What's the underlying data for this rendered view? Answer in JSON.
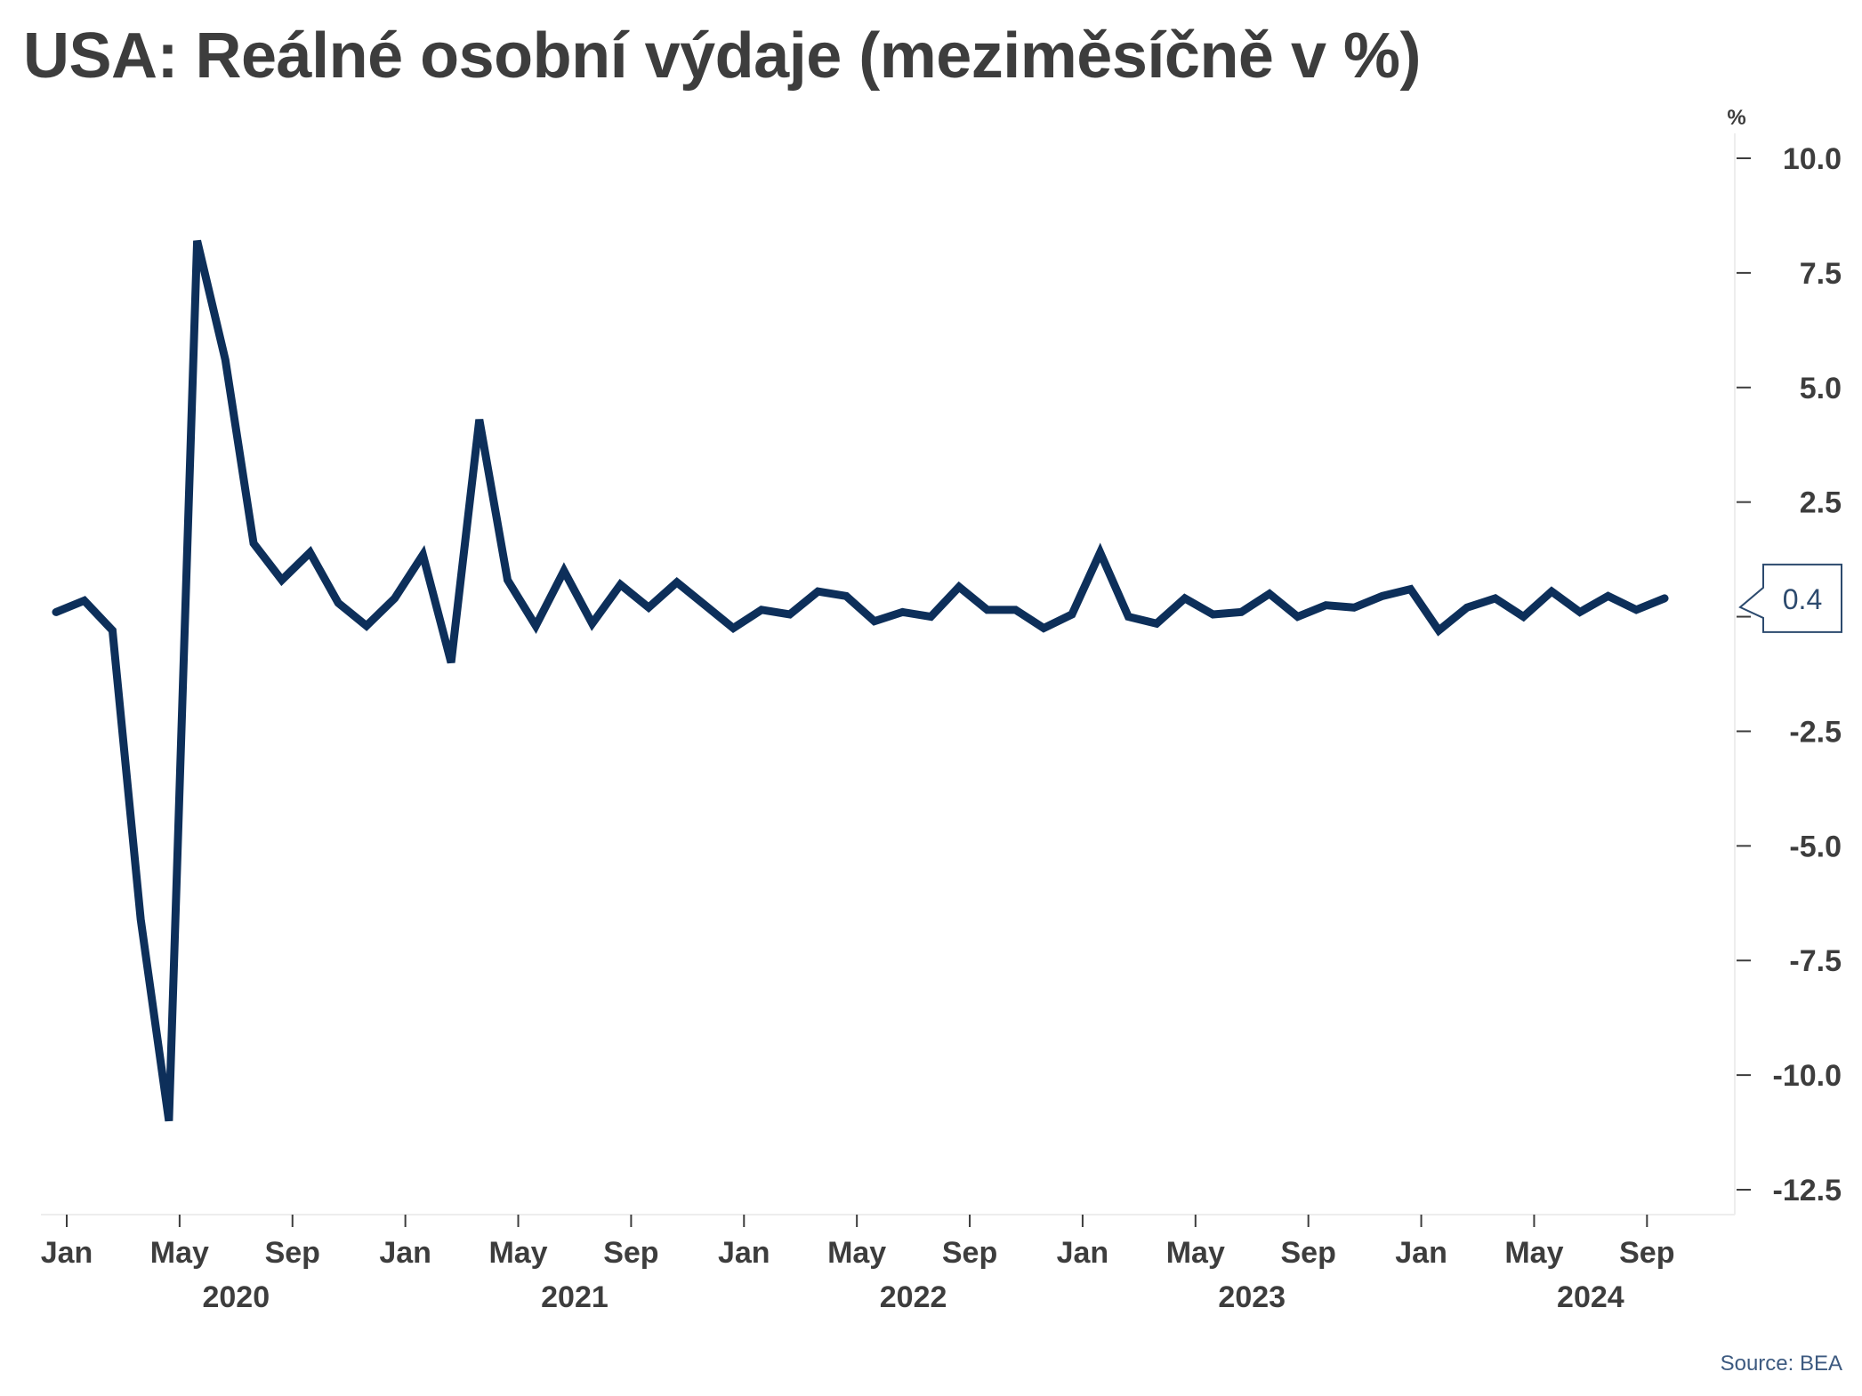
{
  "chart_data": {
    "type": "line",
    "title": "USA: Reálné osobní výdaje (meziměsíčně v %)",
    "y_unit": "%",
    "source": "Source: BEA",
    "ylim": [
      -12.5,
      10.0
    ],
    "y_ticks": [
      "10.0",
      "7.5",
      "5.0",
      "2.5",
      "",
      "-2.5",
      "-5.0",
      "-7.5",
      "-10.0",
      "-12.5"
    ],
    "y_tick_values": [
      10.0,
      7.5,
      5.0,
      2.5,
      0.0,
      -2.5,
      -5.0,
      -7.5,
      -10.0,
      -12.5
    ],
    "x_month_ticks": [
      {
        "label": "Jan",
        "index": 0
      },
      {
        "label": "May",
        "index": 4
      },
      {
        "label": "Sep",
        "index": 8
      },
      {
        "label": "Jan",
        "index": 12
      },
      {
        "label": "May",
        "index": 16
      },
      {
        "label": "Sep",
        "index": 20
      },
      {
        "label": "Jan",
        "index": 24
      },
      {
        "label": "May",
        "index": 28
      },
      {
        "label": "Sep",
        "index": 32
      },
      {
        "label": "Jan",
        "index": 36
      },
      {
        "label": "May",
        "index": 40
      },
      {
        "label": "Sep",
        "index": 44
      },
      {
        "label": "Jan",
        "index": 48
      },
      {
        "label": "May",
        "index": 52
      },
      {
        "label": "Sep",
        "index": 56
      }
    ],
    "x_year_labels": [
      {
        "label": "2020",
        "index": 6
      },
      {
        "label": "2021",
        "index": 18
      },
      {
        "label": "2022",
        "index": 30
      },
      {
        "label": "2023",
        "index": 42
      },
      {
        "label": "2024",
        "index": 54
      }
    ],
    "series": [
      {
        "color": "#0d2f5a",
        "start": "2020-01",
        "values": [
          0.1,
          0.35,
          -0.3,
          -6.6,
          -11.0,
          8.2,
          5.6,
          1.6,
          0.8,
          1.4,
          0.3,
          -0.2,
          0.4,
          1.35,
          -1.0,
          4.3,
          0.8,
          -0.2,
          1.0,
          -0.15,
          0.7,
          0.2,
          0.75,
          0.25,
          -0.25,
          0.15,
          0.05,
          0.55,
          0.45,
          -0.1,
          0.1,
          0.0,
          0.65,
          0.15,
          0.15,
          -0.25,
          0.05,
          1.4,
          0.0,
          -0.15,
          0.4,
          0.05,
          0.1,
          0.5,
          0.0,
          0.25,
          0.2,
          0.45,
          0.6,
          -0.3,
          0.2,
          0.4,
          0.0,
          0.55,
          0.1,
          0.45,
          0.15,
          0.4
        ]
      }
    ],
    "last_value_label": "0.4",
    "grid": false,
    "legend": "none"
  }
}
